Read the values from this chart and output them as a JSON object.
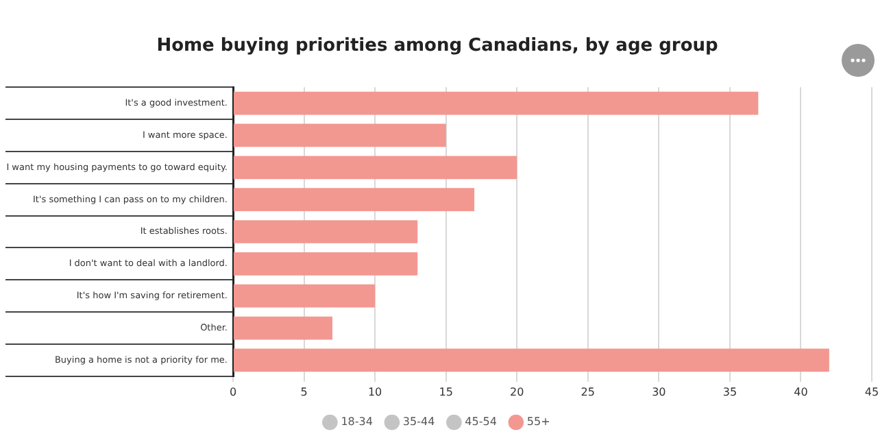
{
  "chart_data": {
    "type": "bar",
    "orientation": "horizontal",
    "title": "Home buying priorities among Canadians, by age group",
    "categories": [
      "It's a good investment.",
      "I want more space.",
      "I want my housing payments to go toward equity.",
      "It's something I can pass on to my children.",
      "It establishes roots.",
      "I don't want to deal with a landlord.",
      "It's how I'm saving for retirement.",
      "Other.",
      "Buying a home is not a priority for me."
    ],
    "series": [
      {
        "name": "18-34",
        "color": "#c4c4c4",
        "values": [
          null,
          null,
          null,
          null,
          null,
          null,
          null,
          null,
          null
        ]
      },
      {
        "name": "35-44",
        "color": "#c4c4c4",
        "values": [
          null,
          null,
          null,
          null,
          null,
          null,
          null,
          null,
          null
        ]
      },
      {
        "name": "45-54",
        "color": "#c4c4c4",
        "values": [
          null,
          null,
          null,
          null,
          null,
          null,
          null,
          null,
          null
        ]
      },
      {
        "name": "55+",
        "color": "#f29891",
        "values": [
          37,
          15,
          20,
          17,
          13,
          13,
          10,
          7,
          42
        ]
      }
    ],
    "xlim": [
      0,
      45
    ],
    "xticks": [
      0,
      5,
      10,
      15,
      20,
      25,
      30,
      35,
      40,
      45
    ],
    "grid": "x",
    "legend": "bottom"
  }
}
